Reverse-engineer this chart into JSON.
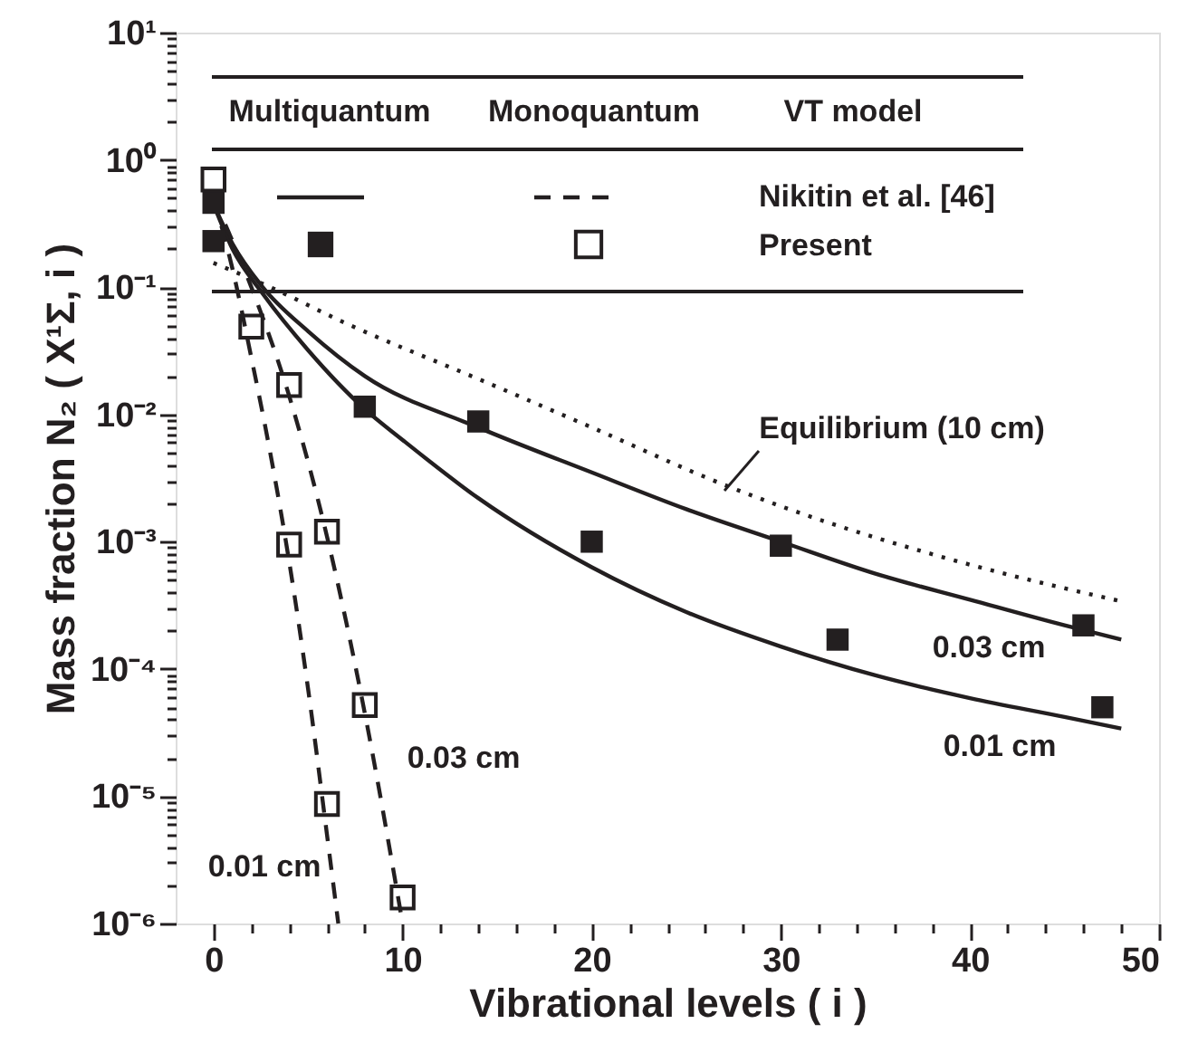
{
  "chart_data": {
    "type": "line",
    "xlabel": "Vibrational levels ( i )",
    "ylabel": "Mass fraction N₂ ( X¹Σ, i )",
    "xlim": [
      -2,
      50
    ],
    "ylim": [
      1e-06,
      10
    ],
    "log": true,
    "xticks": [
      0,
      10,
      20,
      30,
      40,
      50,
      {
        "value": 2,
        "label": null
      },
      {
        "value": 4,
        "label": null
      },
      {
        "value": 6,
        "label": null
      },
      {
        "value": 8,
        "label": null
      },
      {
        "value": 12,
        "label": null
      },
      {
        "value": 14,
        "label": null
      },
      {
        "value": 16,
        "label": null
      },
      {
        "value": 18,
        "label": null
      },
      {
        "value": 22,
        "label": null
      },
      {
        "value": 24,
        "label": null
      },
      {
        "value": 26,
        "label": null
      },
      {
        "value": 28,
        "label": null
      },
      {
        "value": 32,
        "label": null
      },
      {
        "value": 34,
        "label": null
      },
      {
        "value": 36,
        "label": null
      },
      {
        "value": 38,
        "label": null
      },
      {
        "value": 42,
        "label": null
      },
      {
        "value": 44,
        "label": null
      },
      {
        "value": 46,
        "label": null
      },
      {
        "value": 48,
        "label": null
      }
    ],
    "yticks": [
      {
        "value": 1e-06,
        "label": "10⁻⁶"
      },
      {
        "value": 1e-05,
        "label": "10⁻⁵"
      },
      {
        "value": 0.0001,
        "label": "10⁻⁴"
      },
      {
        "value": 0.001,
        "label": "10⁻³"
      },
      {
        "value": 0.01,
        "label": "10⁻²"
      },
      {
        "value": 0.1,
        "label": "10⁻¹"
      },
      {
        "value": 1,
        "label": "10⁰"
      },
      {
        "value": 10,
        "label": "10¹"
      },
      {
        "value": 2e-06,
        "label": null
      },
      {
        "value": 3e-06,
        "label": null
      },
      {
        "value": 4e-06,
        "label": null
      },
      {
        "value": 5e-06,
        "label": null
      },
      {
        "value": 6e-06,
        "label": null
      },
      {
        "value": 7e-06,
        "label": null
      },
      {
        "value": 8e-06,
        "label": null
      },
      {
        "value": 9e-06,
        "label": null
      },
      {
        "value": 2e-05,
        "label": null
      },
      {
        "value": 3e-05,
        "label": null
      },
      {
        "value": 4e-05,
        "label": null
      },
      {
        "value": 5e-05,
        "label": null
      },
      {
        "value": 6e-05,
        "label": null
      },
      {
        "value": 7e-05,
        "label": null
      },
      {
        "value": 8e-05,
        "label": null
      },
      {
        "value": 9e-05,
        "label": null
      },
      {
        "value": 0.0002,
        "label": null
      },
      {
        "value": 0.0003,
        "label": null
      },
      {
        "value": 0.0004,
        "label": null
      },
      {
        "value": 0.0005,
        "label": null
      },
      {
        "value": 0.0006,
        "label": null
      },
      {
        "value": 0.0007,
        "label": null
      },
      {
        "value": 0.0008,
        "label": null
      },
      {
        "value": 0.0009,
        "label": null
      },
      {
        "value": 0.002,
        "label": null
      },
      {
        "value": 0.003,
        "label": null
      },
      {
        "value": 0.004,
        "label": null
      },
      {
        "value": 0.005,
        "label": null
      },
      {
        "value": 0.006,
        "label": null
      },
      {
        "value": 0.007,
        "label": null
      },
      {
        "value": 0.008,
        "label": null
      },
      {
        "value": 0.009,
        "label": null
      },
      {
        "value": 0.02,
        "label": null
      },
      {
        "value": 0.03,
        "label": null
      },
      {
        "value": 0.04,
        "label": null
      },
      {
        "value": 0.05,
        "label": null
      },
      {
        "value": 0.06,
        "label": null
      },
      {
        "value": 0.07,
        "label": null
      },
      {
        "value": 0.08,
        "label": null
      },
      {
        "value": 0.09,
        "label": null
      },
      {
        "value": 0.2,
        "label": null
      },
      {
        "value": 0.3,
        "label": null
      },
      {
        "value": 0.4,
        "label": null
      },
      {
        "value": 0.5,
        "label": null
      },
      {
        "value": 0.6,
        "label": null
      },
      {
        "value": 0.7,
        "label": null
      },
      {
        "value": 0.8,
        "label": null
      },
      {
        "value": 0.9,
        "label": null
      },
      {
        "value": 2,
        "label": null
      },
      {
        "value": 3,
        "label": null
      },
      {
        "value": 4,
        "label": null
      },
      {
        "value": 5,
        "label": null
      },
      {
        "value": 6,
        "label": null
      },
      {
        "value": 7,
        "label": null
      },
      {
        "value": 8,
        "label": null
      },
      {
        "value": 9,
        "label": null
      }
    ],
    "annotations": [
      "Multiquantum",
      "Monoquantum",
      "VT model",
      "Nikitin et al. [46]",
      "Present",
      "Equilibrium (10 cm)",
      "0.03 cm",
      "0.01 cm",
      "0.03 cm",
      "0.01 cm"
    ],
    "series": [
      {
        "type": "line",
        "line_style": "solid",
        "color": "#231f20",
        "x": [
          0,
          1,
          2.6,
          5,
          8,
          14,
          20,
          25,
          30,
          35,
          40,
          45,
          48
        ],
        "values": [
          0.45,
          0.22,
          0.1,
          0.045,
          0.02,
          0.0079,
          0.0035,
          0.0018,
          0.001,
          0.00056,
          0.00035,
          0.00022,
          0.00017
        ]
      },
      {
        "type": "line",
        "line_style": "solid",
        "color": "#231f20",
        "x": [
          0,
          1,
          2.6,
          5,
          8,
          10,
          14,
          20,
          25,
          30,
          35,
          40,
          45,
          48
        ],
        "values": [
          0.45,
          0.2,
          0.089,
          0.032,
          0.011,
          0.0063,
          0.0022,
          0.00063,
          0.00028,
          0.00015,
          8.9e-05,
          5.9e-05,
          4.2e-05,
          3.4e-05
        ]
      },
      {
        "type": "line",
        "line_style": "dashed",
        "color": "#231f20",
        "x": [
          0,
          2,
          4,
          6,
          8,
          10
        ],
        "values": [
          0.5,
          0.1,
          0.014,
          0.0011,
          4.5e-05,
          1e-06
        ]
      },
      {
        "type": "line",
        "line_style": "dashed",
        "color": "#231f20",
        "x": [
          0,
          1,
          2,
          3,
          4,
          5,
          6,
          6.6
        ],
        "values": [
          0.5,
          0.14,
          0.028,
          0.005,
          0.0007,
          7e-05,
          5e-06,
          1e-06
        ]
      },
      {
        "type": "scatter",
        "marker": "square",
        "color": "#231f20",
        "x": [
          0,
          0,
          8,
          14,
          20,
          30,
          33,
          46,
          47
        ],
        "values": [
          0.46,
          0.23,
          0.0115,
          0.0088,
          0.001,
          0.00093,
          0.00017,
          0.00022,
          5e-05
        ]
      },
      {
        "type": "scatter",
        "marker": "square",
        "color": "#231f20",
        "x": [
          0,
          2,
          4,
          4,
          6,
          6,
          8,
          10
        ],
        "values": [
          0.7,
          0.049,
          0.017,
          0.00095,
          0.0012,
          8.7e-06,
          5.2e-05,
          1.6e-06
        ]
      },
      {
        "type": "line",
        "line_style": "dotted",
        "color": "#231f20",
        "x": [
          0,
          3,
          7,
          14,
          20,
          27,
          30,
          40,
          48
        ],
        "values": [
          0.155,
          0.1,
          0.052,
          0.019,
          0.0079,
          0.0028,
          0.0019,
          0.00066,
          0.00034
        ]
      }
    ]
  }
}
